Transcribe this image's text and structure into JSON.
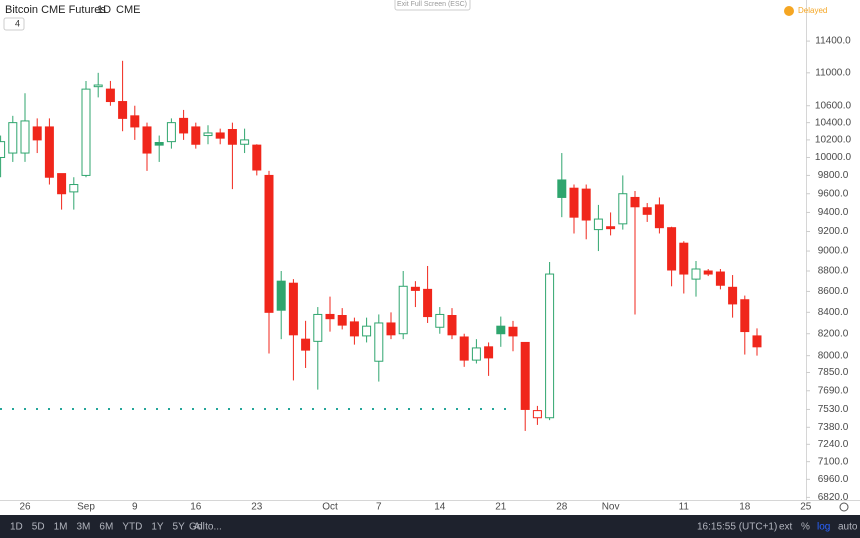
{
  "chart_data": {
    "type": "candlestick",
    "title": "Bitcoin CME Futures",
    "interval": "1D",
    "exchange": "CME",
    "indicators": 4,
    "log_scale": true,
    "grid": false,
    "up_color": "#2fa56e",
    "down_color": "#f0261b",
    "categories": [
      null,
      null,
      "26",
      null,
      null,
      null,
      null,
      "Sep",
      null,
      null,
      null,
      "9",
      null,
      null,
      null,
      null,
      "16",
      null,
      null,
      null,
      null,
      "23",
      null,
      null,
      null,
      null,
      null,
      "Oct",
      null,
      null,
      null,
      "7",
      null,
      null,
      null,
      null,
      "14",
      null,
      null,
      null,
      null,
      "21",
      null,
      null,
      null,
      null,
      "28",
      null,
      null,
      null,
      "Nov",
      null,
      null,
      null,
      null,
      null,
      "11",
      null,
      null,
      null,
      null,
      "18",
      null,
      null,
      null,
      null,
      "25"
    ],
    "open": [
      10000,
      10050,
      10050,
      10350,
      10350,
      9820,
      9620,
      9800,
      10830,
      10800,
      10650,
      10480,
      10350,
      10170,
      10180,
      10450,
      10350,
      10250,
      10280,
      10320,
      10150,
      10140,
      9800,
      8700,
      8680,
      8150,
      8130,
      8380,
      8370,
      8310,
      8180,
      7950,
      8300,
      8200,
      8640,
      8620,
      8260,
      8370,
      8170,
      7960,
      8080,
      8270,
      8260,
      8120,
      7460,
      7460,
      9750,
      9660,
      9650,
      9220,
      9250,
      9280,
      9560,
      9450,
      9480,
      9240,
      9080,
      8720,
      8800,
      8790,
      8640,
      8520,
      8180,
      null,
      null,
      null,
      null
    ],
    "high": [
      10250,
      10480,
      10750,
      10450,
      10450,
      9820,
      9780,
      10900,
      11000,
      10900,
      11150,
      10600,
      10400,
      10250,
      10450,
      10550,
      10400,
      10370,
      10330,
      10400,
      10330,
      10150,
      9850,
      8800,
      8720,
      8320,
      8450,
      8550,
      8440,
      8350,
      8350,
      8380,
      8400,
      8800,
      8700,
      8850,
      8450,
      8440,
      8200,
      8150,
      8120,
      8360,
      8320,
      8120,
      7560,
      8890,
      10050,
      9700,
      9700,
      9480,
      9400,
      9800,
      9630,
      9500,
      9560,
      9250,
      9100,
      8900,
      8820,
      8820,
      8760,
      8560,
      8250,
      null,
      null,
      null,
      null
    ],
    "low": [
      9780,
      9950,
      9950,
      10050,
      9700,
      9430,
      9430,
      9780,
      10700,
      10600,
      10300,
      10200,
      9850,
      9950,
      10100,
      10200,
      10100,
      10150,
      10150,
      9650,
      10050,
      9800,
      8020,
      8150,
      7780,
      7890,
      7700,
      8220,
      8240,
      8100,
      8120,
      7770,
      8150,
      8150,
      8450,
      8300,
      8200,
      8150,
      7900,
      7930,
      7820,
      8080,
      8040,
      7350,
      7400,
      7440,
      9350,
      9180,
      9120,
      9000,
      9160,
      9220,
      8380,
      9300,
      9180,
      8650,
      8580,
      8550,
      8750,
      8620,
      8350,
      8010,
      8000,
      null,
      null,
      null,
      null
    ],
    "close": [
      10180,
      10400,
      10420,
      10200,
      9780,
      9600,
      9700,
      10800,
      10850,
      10650,
      10450,
      10350,
      10050,
      10140,
      10400,
      10280,
      10150,
      10280,
      10220,
      10150,
      10200,
      9860,
      8400,
      8420,
      8190,
      8050,
      8380,
      8340,
      8280,
      8180,
      8270,
      8300,
      8190,
      8650,
      8610,
      8360,
      8380,
      8190,
      7960,
      8070,
      7980,
      8200,
      8180,
      7530,
      7520,
      8770,
      9560,
      9350,
      9320,
      9330,
      9230,
      9600,
      9460,
      9380,
      9240,
      8810,
      8770,
      8820,
      8770,
      8660,
      8480,
      8220,
      8080,
      null,
      null,
      null,
      null
    ],
    "ylim": [
      6800,
      11940
    ],
    "yticks": [
      {
        "value": 6820,
        "label": "6820.0"
      },
      {
        "value": 6960,
        "label": "6960.0"
      },
      {
        "value": 7100,
        "label": "7100.0"
      },
      {
        "value": 7240,
        "label": "7240.0"
      },
      {
        "value": 7380,
        "label": "7380.0"
      },
      {
        "value": 7530,
        "label": "7530.0"
      },
      {
        "value": 7690,
        "label": "7690.0"
      },
      {
        "value": 7850,
        "label": "7850.0"
      },
      {
        "value": 8000,
        "label": "8000.0"
      },
      {
        "value": 8200,
        "label": "8200.0"
      },
      {
        "value": 8400,
        "label": "8400.0"
      },
      {
        "value": 8600,
        "label": "8600.0"
      },
      {
        "value": 8800,
        "label": "8800.0"
      },
      {
        "value": 9000,
        "label": "9000.0"
      },
      {
        "value": 9200,
        "label": "9200.0"
      },
      {
        "value": 9400,
        "label": "9400.0"
      },
      {
        "value": 9600,
        "label": "9600.0"
      },
      {
        "value": 9800,
        "label": "9800.0"
      },
      {
        "value": 10000,
        "label": "10000.0"
      },
      {
        "value": 10200,
        "label": "10200.0"
      },
      {
        "value": 10400,
        "label": "10400.0"
      },
      {
        "value": 10600,
        "label": "10600.0"
      },
      {
        "value": 11000,
        "label": "11000.0"
      },
      {
        "value": 11400,
        "label": "11400.0"
      }
    ]
  },
  "ui": {
    "exit_fullscreen": "Exit Full Screen (ESC)",
    "status": "Delayed",
    "ranges": [
      "1D",
      "5D",
      "1M",
      "3M",
      "6M",
      "YTD",
      "1Y",
      "5Y",
      "All"
    ],
    "goto": "Go to...",
    "time": "16:15:55 (UTC+1)",
    "options": [
      "ext",
      "%",
      "log",
      "auto"
    ]
  }
}
